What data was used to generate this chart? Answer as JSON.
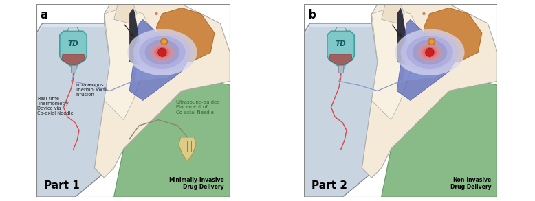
{
  "panel_a_label": "a",
  "panel_b_label": "b",
  "part1_label": "Part 1",
  "part2_label": "Part 2",
  "part1_subtitle": "Minimally-invasive\nDrug Delivery",
  "part2_subtitle": "Non-invasive\nDrug Delivery",
  "text_iv": "Intravenous\nThermoDox®\nInfusion",
  "text_realtime": "Real-time\nThermometry\nDevice via\nCo-axial Needle",
  "text_us": "Ultrasound-guided\nPlacement of\nCo-axial Needle",
  "td_label": "TD",
  "bg_color": "#ffffff",
  "tray_color": "#c8d4e0",
  "tray_top": "#d8e4ef",
  "tray_side": "#a0aab8",
  "tray_border": "#888898",
  "skin_light": "#f5ead8",
  "skin_mid": "#eedfc8",
  "body_line": "#aaaaaa",
  "liver_color": "#cc8844",
  "liver_edge": "#b07030",
  "tumor_core": "#cc2020",
  "tumor_r1": "#dd4040",
  "tumor_r2": "#e86060",
  "tumor_r3": "#ef8080",
  "tumor_r4": "#f4a0a0",
  "heat_1": "#7070aa",
  "heat_2": "#8888bb",
  "heat_3": "#9999cc",
  "heat_4": "#aaaadd",
  "heat_5": "#c0c0e8",
  "heat_6": "#d8d8f0",
  "blue_tri_1": "#5566bb",
  "blue_tri_2": "#6677cc",
  "blue_tri_3": "#8899dd",
  "green_bg": "#88bb88",
  "green_edge": "#669966",
  "bag_body": "#7ec8c8",
  "bag_edge": "#40a0a0",
  "bag_liquid": "#a06060",
  "bag_liquid_edge": "#884444",
  "bag_drip": "#888898",
  "tube_red": "#dd4444",
  "tube_blue": "#8899cc",
  "tube_dark": "#888898",
  "probe_body": "#ddcc88",
  "probe_edge": "#aa9944",
  "text_dark": "#222222",
  "text_green": "#336633",
  "arrow_color": "#222222",
  "nipple_color": "#dda878",
  "dot_color": "#cc8866"
}
